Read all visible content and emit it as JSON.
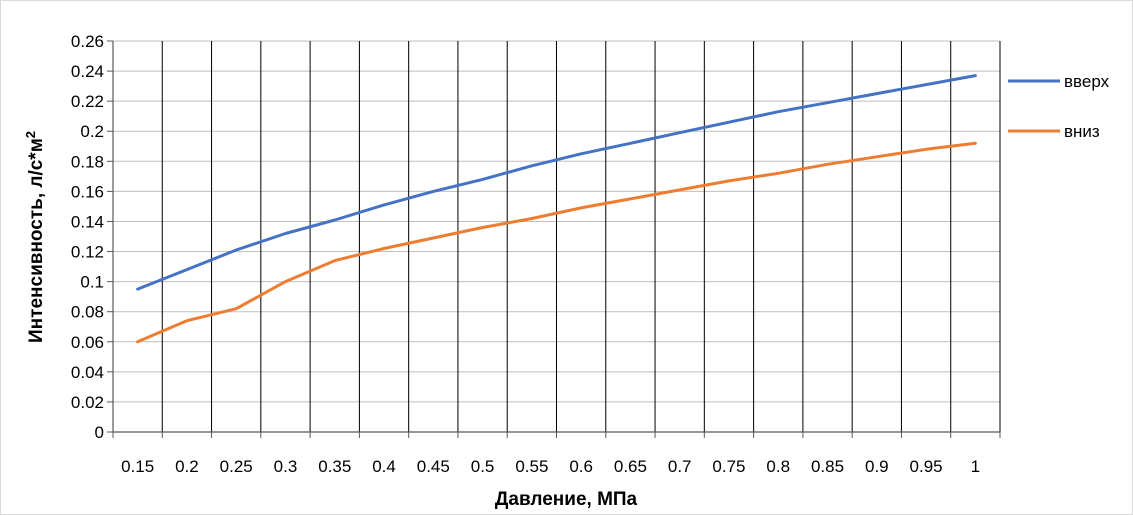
{
  "chart_data": {
    "type": "line",
    "xlabel": "Давление, МПа",
    "ylabel": "Интенсивность, л/с*м",
    "ylabel_superscript": "2",
    "categories": [
      "0.15",
      "0.2",
      "0.25",
      "0.3",
      "0.35",
      "0.4",
      "0.45",
      "0.5",
      "0.55",
      "0.6",
      "0.65",
      "0.7",
      "0.75",
      "0.8",
      "0.85",
      "0.9",
      "0.95",
      "1"
    ],
    "x": [
      0.15,
      0.2,
      0.25,
      0.3,
      0.35,
      0.4,
      0.45,
      0.5,
      0.55,
      0.6,
      0.65,
      0.7,
      0.75,
      0.8,
      0.85,
      0.9,
      0.95,
      1.0
    ],
    "y_ticks": [
      "0",
      "0.02",
      "0.04",
      "0.06",
      "0.08",
      "0.1",
      "0.12",
      "0.14",
      "0.16",
      "0.18",
      "0.2",
      "0.22",
      "0.24",
      "0.26"
    ],
    "ylim": [
      0,
      0.26
    ],
    "grid": "vertical and horizontal",
    "legend_position": "right",
    "series": [
      {
        "name": "вверх",
        "color": "#4472C4",
        "values": [
          0.095,
          0.108,
          0.121,
          0.132,
          0.141,
          0.151,
          0.16,
          0.168,
          0.177,
          0.185,
          0.192,
          0.199,
          0.206,
          0.213,
          0.219,
          0.225,
          0.231,
          0.237
        ]
      },
      {
        "name": "вниз",
        "color": "#ED7D31",
        "values": [
          0.06,
          0.074,
          0.082,
          0.1,
          0.114,
          0.122,
          0.129,
          0.136,
          0.142,
          0.149,
          0.155,
          0.161,
          0.167,
          0.172,
          0.178,
          0.183,
          0.188,
          0.192
        ]
      }
    ]
  }
}
